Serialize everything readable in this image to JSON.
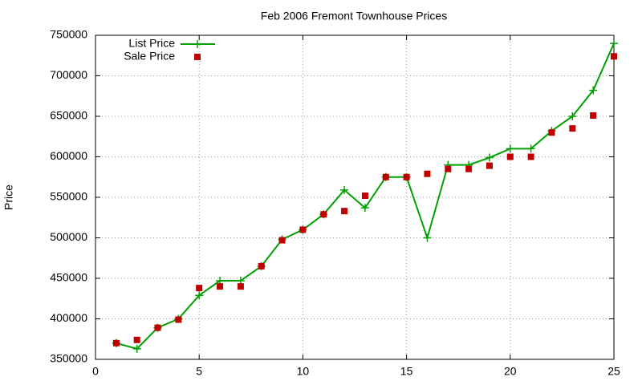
{
  "chart_data": {
    "type": "line",
    "title": "Feb 2006 Fremont Townhouse Prices",
    "ylabel": "Price",
    "x": [
      1,
      2,
      3,
      4,
      5,
      6,
      7,
      8,
      9,
      10,
      11,
      12,
      13,
      14,
      15,
      16,
      17,
      18,
      19,
      20,
      21,
      22,
      23,
      24,
      25
    ],
    "series": [
      {
        "name": "List Price",
        "color": "#00a000",
        "style": "linespoints",
        "marker": "plus",
        "values": [
          370000,
          363000,
          389000,
          400000,
          429000,
          447000,
          447000,
          465000,
          498000,
          510000,
          529000,
          559000,
          537000,
          575000,
          575000,
          500000,
          590000,
          590000,
          599000,
          610000,
          610000,
          632000,
          650000,
          682000,
          740000
        ]
      },
      {
        "name": "Sale Price",
        "color": "#c00000",
        "style": "points",
        "marker": "square",
        "values": [
          370000,
          374000,
          389000,
          399000,
          438000,
          440000,
          440000,
          465000,
          497000,
          510000,
          529000,
          533000,
          552000,
          575000,
          575000,
          579000,
          585000,
          585000,
          589000,
          600000,
          600000,
          630000,
          635000,
          651000,
          724000
        ]
      }
    ],
    "xlim": [
      0,
      25
    ],
    "xticks": [
      0,
      5,
      10,
      15,
      20,
      25
    ],
    "ylim": [
      350000,
      750000
    ],
    "yticks": [
      350000,
      400000,
      450000,
      500000,
      550000,
      600000,
      650000,
      700000,
      750000
    ],
    "grid": true,
    "legend": "top-left"
  }
}
